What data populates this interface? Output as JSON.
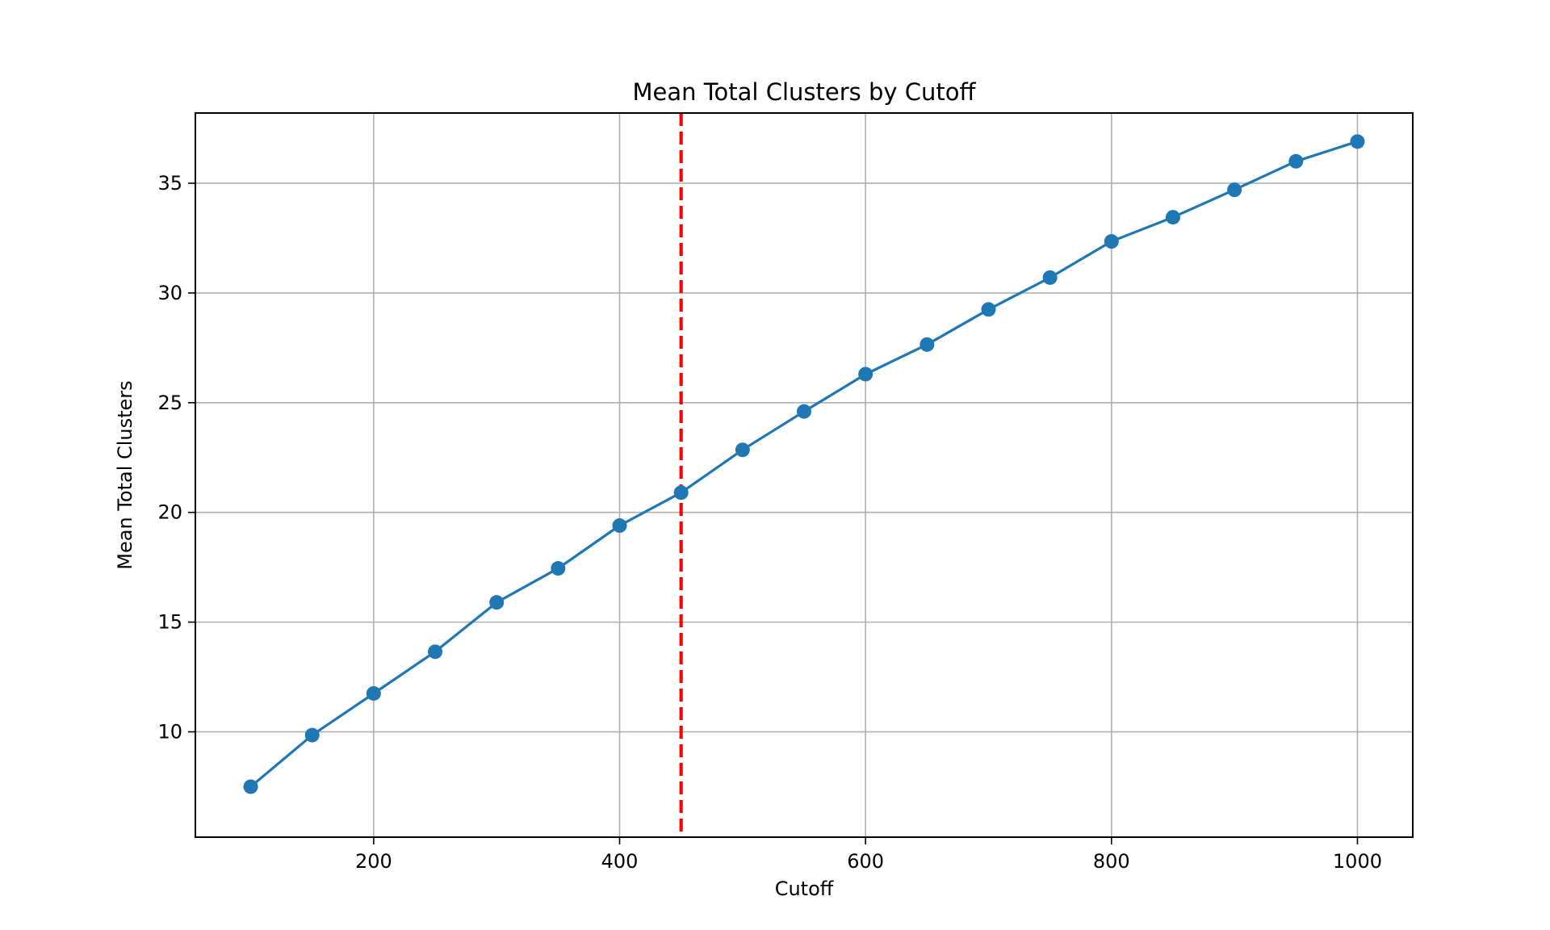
{
  "chart_data": {
    "type": "line",
    "title": "Mean Total Clusters by Cutoff",
    "xlabel": "Cutoff",
    "ylabel": "Mean Total Clusters",
    "xlim": [
      55,
      1045
    ],
    "ylim": [
      5.2,
      38.2
    ],
    "xticks": [
      200,
      400,
      600,
      800,
      1000
    ],
    "yticks": [
      10,
      15,
      20,
      25,
      30,
      35
    ],
    "grid": true,
    "series": [
      {
        "color": "#1f77b4",
        "marker": "circle",
        "x": [
          100,
          150,
          200,
          250,
          300,
          350,
          400,
          450,
          500,
          550,
          600,
          650,
          700,
          750,
          800,
          850,
          900,
          950,
          1000
        ],
        "y": [
          7.5,
          9.85,
          11.75,
          13.65,
          15.9,
          17.45,
          19.4,
          20.9,
          22.85,
          24.6,
          26.3,
          27.65,
          29.25,
          30.7,
          32.35,
          33.45,
          34.7,
          36.0,
          36.9
        ]
      }
    ],
    "vline": {
      "x": 450,
      "color": "#ff0000",
      "style": "dashed"
    }
  }
}
